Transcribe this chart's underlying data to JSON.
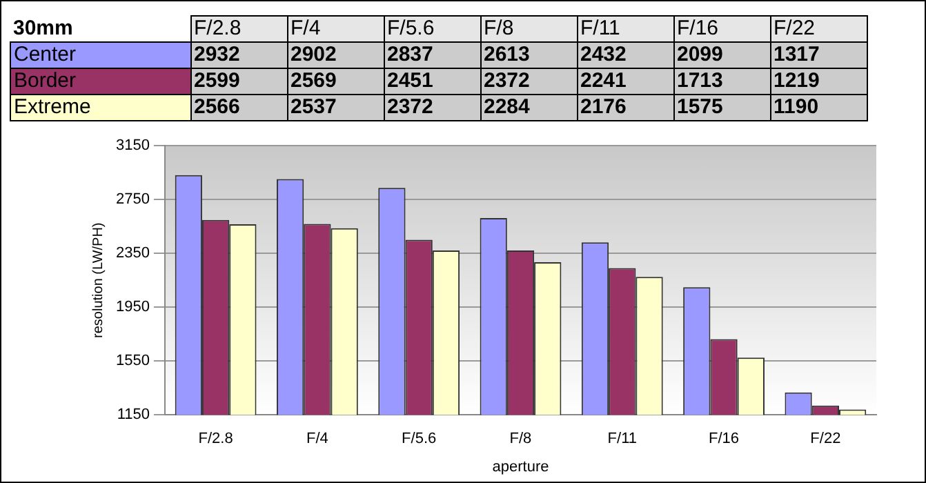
{
  "chart_data": {
    "type": "bar",
    "title": "30mm",
    "xlabel": "aperture",
    "ylabel": "resolution (LW/PH)",
    "categories": [
      "F/2.8",
      "F/4",
      "F/5.6",
      "F/8",
      "F/11",
      "F/16",
      "F/22"
    ],
    "series": [
      {
        "name": "Center",
        "color": "#9999ff",
        "values": [
          2932,
          2902,
          2837,
          2613,
          2432,
          2099,
          1317
        ]
      },
      {
        "name": "Border",
        "color": "#993366",
        "values": [
          2599,
          2569,
          2451,
          2372,
          2241,
          1713,
          1219
        ]
      },
      {
        "name": "Extreme",
        "color": "#ffffcc",
        "values": [
          2566,
          2537,
          2372,
          2284,
          2176,
          1575,
          1190
        ]
      }
    ],
    "ylim": [
      1150,
      3150
    ],
    "yticks": [
      1150,
      1550,
      1950,
      2350,
      2750,
      3150
    ],
    "grid": "y",
    "data_labels": true
  }
}
